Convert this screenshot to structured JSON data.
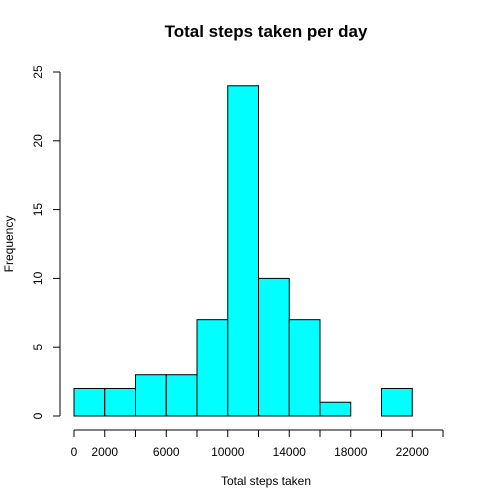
{
  "chart_data": {
    "type": "bar",
    "title": "Total steps taken per day",
    "xlabel": "Total steps taken",
    "ylabel": "Frequency",
    "bin_edges": [
      0,
      2000,
      4000,
      6000,
      8000,
      10000,
      12000,
      14000,
      16000,
      18000,
      20000,
      22000
    ],
    "values": [
      2,
      2,
      3,
      3,
      7,
      24,
      10,
      7,
      1,
      0,
      2
    ],
    "xlim": [
      0,
      24000
    ],
    "ylim": [
      0,
      25
    ],
    "x_ticks": [
      0,
      2000,
      4000,
      6000,
      8000,
      10000,
      12000,
      14000,
      16000,
      18000,
      20000,
      22000,
      24000
    ],
    "x_tick_labels": [
      "0",
      "2000",
      "6000",
      "10000",
      "14000",
      "18000",
      "22000"
    ],
    "y_ticks": [
      0,
      5,
      10,
      15,
      20,
      25
    ],
    "y_tick_labels": [
      "0",
      "5",
      "10",
      "15",
      "20",
      "25"
    ],
    "grid": false,
    "colors": {
      "bar_fill": "#00ffff",
      "bar_stroke": "#000000"
    }
  }
}
